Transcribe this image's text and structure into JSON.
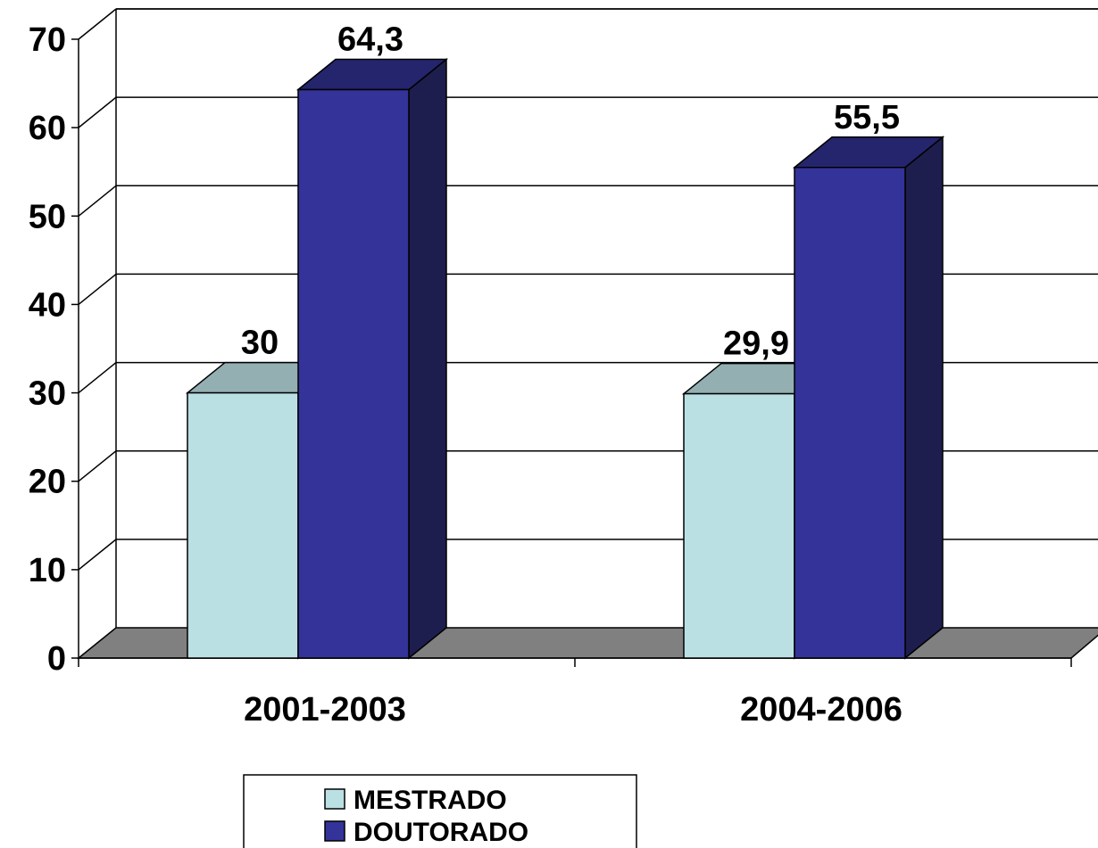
{
  "chart_data": {
    "type": "bar",
    "categories": [
      "2001-2003",
      "2004-2006"
    ],
    "series": [
      {
        "name": "MESTRADO",
        "values": [
          30,
          29.9
        ],
        "labels": [
          "30",
          "29,9"
        ],
        "color": "#BBE0E3",
        "top_color": "#93AFB2"
      },
      {
        "name": "DOUTORADO",
        "values": [
          64.3,
          55.5
        ],
        "labels": [
          "64,3",
          "55,5"
        ],
        "color": "#333399",
        "top_color": "#25256E",
        "side_color": "#1E1E4E"
      }
    ],
    "ylim": [
      0,
      70
    ],
    "yticks": [
      0,
      10,
      20,
      30,
      40,
      50,
      60,
      70
    ],
    "ytick_labels": [
      "0",
      "10",
      "20",
      "30",
      "40",
      "50",
      "60",
      "70"
    ],
    "grid": true,
    "floor_color": "#808080",
    "legend_position": "bottom-center",
    "title": "",
    "xlabel": "",
    "ylabel": ""
  }
}
